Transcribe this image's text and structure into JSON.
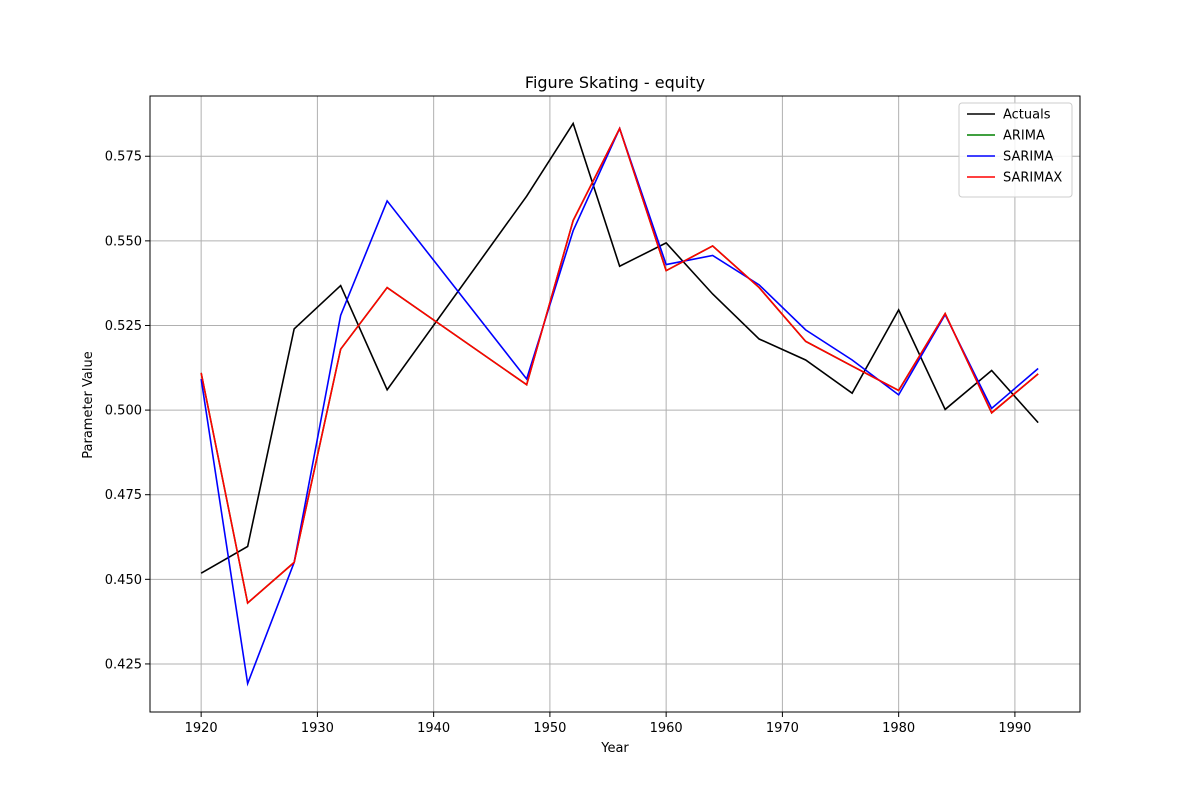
{
  "chart_data": {
    "type": "line",
    "title": "Figure Skating - equity",
    "xlabel": "Year",
    "ylabel": "Parameter Value",
    "xlim": [
      1915.6,
      1995.6
    ],
    "ylim": [
      0.4108,
      0.5928
    ],
    "xticks": [
      1920,
      1930,
      1940,
      1950,
      1960,
      1970,
      1980,
      1990
    ],
    "xtick_labels": [
      "1920",
      "1930",
      "1940",
      "1950",
      "1960",
      "1970",
      "1980",
      "1990"
    ],
    "yticks": [
      0.425,
      0.45,
      0.475,
      0.5,
      0.525,
      0.55,
      0.575
    ],
    "ytick_labels": [
      "0.425",
      "0.450",
      "0.475",
      "0.500",
      "0.525",
      "0.550",
      "0.575"
    ],
    "grid": true,
    "legend_position": "top-right",
    "x": [
      1920,
      1924,
      1928,
      1932,
      1936,
      1948,
      1952,
      1956,
      1960,
      1964,
      1968,
      1972,
      1976,
      1980,
      1984,
      1988,
      1992
    ],
    "series": [
      {
        "name": "Actuals",
        "color": "#000000",
        "values": [
          0.4518,
          0.4597,
          0.524,
          0.5368,
          0.506,
          0.5632,
          0.5847,
          0.5425,
          0.5494,
          0.5343,
          0.521,
          0.5148,
          0.505,
          0.5296,
          0.5002,
          0.5117,
          0.4963
        ]
      },
      {
        "name": "ARIMA",
        "color": "#008000",
        "values": [
          0.511,
          0.443,
          0.455,
          0.518,
          0.5362,
          0.5075,
          0.556,
          0.5832,
          0.5412,
          0.5485,
          0.5362,
          0.5203,
          0.513,
          0.5058,
          0.5285,
          0.4992,
          0.5107
        ]
      },
      {
        "name": "SARIMA",
        "color": "#0000ff",
        "values": [
          0.5092,
          0.4192,
          0.455,
          0.528,
          0.5618,
          0.5092,
          0.553,
          0.5832,
          0.543,
          0.5457,
          0.537,
          0.5237,
          0.5148,
          0.5045,
          0.5282,
          0.5005,
          0.5123
        ]
      },
      {
        "name": "SARIMAX",
        "color": "#ff0000",
        "values": [
          0.511,
          0.443,
          0.455,
          0.518,
          0.5362,
          0.5075,
          0.556,
          0.5832,
          0.5412,
          0.5485,
          0.5362,
          0.5203,
          0.513,
          0.5058,
          0.5285,
          0.4992,
          0.5107
        ]
      }
    ]
  }
}
